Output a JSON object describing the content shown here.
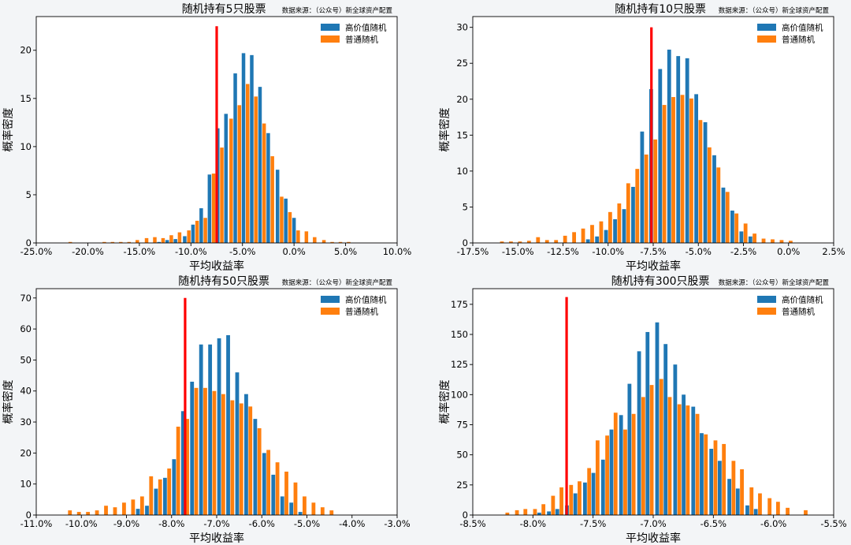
{
  "colors": {
    "high": "#1f77b4",
    "normal": "#ff7f0e",
    "marker": "#ff0000"
  },
  "chart_data": [
    {
      "type": "bar",
      "title": "随机持有5只股票",
      "source": "数据来源：（公众号）新全球资产配置",
      "xlabel": "平均收益率",
      "ylabel": "概率密度",
      "xlim": [
        -25,
        10
      ],
      "ylim": [
        0,
        23.5
      ],
      "xticks": [
        -25,
        -20,
        -15,
        -10,
        -5,
        0,
        5,
        10
      ],
      "xtick_labels": [
        "-25.0%",
        "-20.0%",
        "-15.0%",
        "-10.0%",
        "-5.0%",
        "0.0%",
        "5.0%",
        "10.0%"
      ],
      "yticks": [
        0,
        5,
        10,
        15,
        20
      ],
      "ytick_labels": [
        "0",
        "5",
        "10",
        "15",
        "20"
      ],
      "bin_width": 0.82,
      "legend": "top-right",
      "vline": {
        "x": -7.5,
        "y_top": 22.5
      },
      "series": [
        {
          "name": "高价值随机",
          "x": [
            -13.1,
            -12.3,
            -11.5,
            -10.6,
            -9.8,
            -9.0,
            -8.2,
            -7.4,
            -6.6,
            -5.7,
            -4.9,
            -4.1,
            -3.3,
            -2.5,
            -1.6,
            -0.8,
            0.0
          ],
          "values": [
            0.1,
            0.3,
            0.4,
            0.7,
            1.9,
            3.6,
            7.1,
            11.9,
            13.4,
            17.6,
            19.7,
            19.5,
            16.2,
            11.4,
            7.6,
            4.6,
            2.6
          ]
        },
        {
          "name": "普通随机",
          "x": [
            -21.7,
            -18.4,
            -17.6,
            -16.8,
            -16.0,
            -15.2,
            -14.3,
            -13.5,
            -12.7,
            -11.9,
            -11.1,
            -10.2,
            -9.4,
            -8.6,
            -7.8,
            -7.0,
            -6.1,
            -5.3,
            -4.5,
            -3.7,
            -2.9,
            -2.1,
            -1.2,
            -0.4,
            0.4,
            1.2,
            2.0,
            2.9,
            3.7,
            4.5,
            5.3
          ],
          "values": [
            0.1,
            0.1,
            0.1,
            0.1,
            0.1,
            0.3,
            0.5,
            0.6,
            0.5,
            0.8,
            1.1,
            1.3,
            2.3,
            2.6,
            7.2,
            9.9,
            12.9,
            14.3,
            16.5,
            15.2,
            12.4,
            9.0,
            4.8,
            3.2,
            1.3,
            1.2,
            0.6,
            0.3,
            0.1,
            0.1,
            0.1
          ]
        }
      ]
    },
    {
      "type": "bar",
      "title": "随机持有10只股票",
      "source": "数据来源：（公众号）新全球资产配置",
      "xlabel": "平均收益率",
      "ylabel": "概率密度",
      "xlim": [
        -17.5,
        2.5
      ],
      "ylim": [
        0,
        31.5
      ],
      "xticks": [
        -17.5,
        -15,
        -12.5,
        -10,
        -7.5,
        -5,
        -2.5,
        0,
        2.5
      ],
      "xtick_labels": [
        "-17.5%",
        "-15.0%",
        "-12.5%",
        "-10.0%",
        "-7.5%",
        "-5.0%",
        "-2.5%",
        "0.0%",
        "2.5%"
      ],
      "yticks": [
        0,
        5,
        10,
        15,
        20,
        25,
        30
      ],
      "ytick_labels": [
        "0",
        "5",
        "10",
        "15",
        "20",
        "25",
        "30"
      ],
      "bin_width": 0.5,
      "legend": "top-right",
      "vline": {
        "x": -7.6,
        "y_top": 30
      },
      "series": [
        {
          "name": "高价值随机",
          "x": [
            -11.0,
            -10.5,
            -10.0,
            -9.5,
            -9.0,
            -8.5,
            -8.0,
            -7.5,
            -7.0,
            -6.5,
            -6.0,
            -5.5,
            -5.0,
            -4.5,
            -4.0,
            -3.5,
            -3.0,
            -2.5,
            -2.0
          ],
          "values": [
            0.5,
            0.9,
            1.8,
            3.3,
            4.7,
            7.8,
            15.5,
            21.4,
            24.2,
            26.9,
            26.0,
            25.7,
            20.7,
            16.8,
            12.2,
            7.7,
            4.5,
            1.6,
            0.9
          ],
          "offset": -1
        },
        {
          "name": "普通随机",
          "x": [
            -16.0,
            -15.5,
            -15.0,
            -14.5,
            -14.0,
            -13.5,
            -13.0,
            -12.5,
            -12.0,
            -11.5,
            -11.0,
            -10.5,
            -10.0,
            -9.5,
            -9.0,
            -8.5,
            -8.0,
            -7.5,
            -7.0,
            -6.5,
            -6.0,
            -5.5,
            -5.0,
            -4.5,
            -4.0,
            -3.5,
            -3.0,
            -2.5,
            -2.0,
            -1.5,
            -1.0,
            -0.5,
            0.0
          ],
          "values": [
            0.2,
            0.2,
            0.2,
            0.3,
            0.8,
            0.4,
            0.4,
            1.0,
            1.5,
            2.0,
            2.5,
            3.0,
            4.3,
            5.5,
            8.3,
            10.3,
            12.3,
            14.4,
            19.2,
            20.3,
            20.6,
            20.1,
            17.1,
            13.3,
            10.5,
            7.1,
            4.1,
            2.7,
            1.3,
            0.6,
            0.5,
            0.4,
            0.3
          ],
          "offset": 1
        }
      ]
    },
    {
      "type": "bar",
      "title": "随机持有50只股票",
      "source": "数据来源：（公众号）新全球资产配置",
      "xlabel": "平均收益率",
      "ylabel": "概率密度",
      "xlim": [
        -11,
        -3
      ],
      "ylim": [
        0,
        73
      ],
      "xticks": [
        -11,
        -10,
        -9,
        -8,
        -7,
        -6,
        -5,
        -4,
        -3
      ],
      "xtick_labels": [
        "-11.0%",
        "-10.0%",
        "-9.0%",
        "-8.0%",
        "-7.0%",
        "-6.0%",
        "-5.0%",
        "-4.0%",
        "-3.0%"
      ],
      "yticks": [
        0,
        10,
        20,
        30,
        40,
        50,
        60,
        70
      ],
      "ytick_labels": [
        "0",
        "10",
        "20",
        "30",
        "40",
        "50",
        "60",
        "70"
      ],
      "bin_width": 0.2,
      "legend": "top-right",
      "vline": {
        "x": -7.7,
        "y_top": 70
      },
      "series": [
        {
          "name": "高价值随机",
          "x": [
            -8.7,
            -8.5,
            -8.3,
            -8.1,
            -7.9,
            -7.7,
            -7.5,
            -7.3,
            -7.1,
            -6.9,
            -6.7,
            -6.5,
            -6.3,
            -6.1,
            -5.9,
            -5.7,
            -5.5,
            -5.3,
            -5.1
          ],
          "values": [
            2.0,
            3.0,
            8.5,
            12.0,
            18.0,
            33.5,
            43.0,
            55.0,
            55.0,
            57.0,
            58.0,
            46.0,
            39.0,
            31.0,
            20.0,
            13.0,
            6.0,
            4.0,
            1.0
          ],
          "offset": -1
        },
        {
          "name": "普通随机",
          "x": [
            -10.3,
            -10.1,
            -9.9,
            -9.7,
            -9.5,
            -9.3,
            -9.1,
            -8.9,
            -8.7,
            -8.5,
            -8.3,
            -8.1,
            -7.9,
            -7.7,
            -7.5,
            -7.3,
            -7.1,
            -6.9,
            -6.7,
            -6.5,
            -6.3,
            -6.1,
            -5.9,
            -5.7,
            -5.5,
            -5.3,
            -5.1,
            -4.9,
            -4.7,
            -4.5
          ],
          "values": [
            1.5,
            1.0,
            1.0,
            1.5,
            3.0,
            2.5,
            4.0,
            5.0,
            6.0,
            12.5,
            11.5,
            15.0,
            28.5,
            31.0,
            41.0,
            41.0,
            40.0,
            39.0,
            37.0,
            36.0,
            35.0,
            28.0,
            21.0,
            17.0,
            14.0,
            10.5,
            6.0,
            4.0,
            2.5,
            1.5
          ],
          "offset": 1
        }
      ]
    },
    {
      "type": "bar",
      "title": "随机持有300只股票",
      "source": "数据来源：（公众号）新全球资产配置",
      "xlabel": "平均收益率",
      "ylabel": "概率密度",
      "xlim": [
        -8.5,
        -5.5
      ],
      "ylim": [
        0,
        188
      ],
      "xticks": [
        -8.5,
        -8.0,
        -7.5,
        -7.0,
        -6.5,
        -6.0,
        -5.5
      ],
      "xtick_labels": [
        "-8.5%",
        "-8.0%",
        "-7.5%",
        "-7.0%",
        "-6.5%",
        "-6.0%",
        "-5.5%"
      ],
      "yticks": [
        0,
        25,
        50,
        75,
        100,
        125,
        150,
        175
      ],
      "ytick_labels": [
        "0",
        "25",
        "50",
        "75",
        "100",
        "125",
        "150",
        "175"
      ],
      "bin_width": 0.075,
      "legend": "top-right",
      "vline": {
        "x": -7.72,
        "y_top": 181
      },
      "series": [
        {
          "name": "高价值随机",
          "x": [
            -7.93,
            -7.85,
            -7.78,
            -7.7,
            -7.63,
            -7.55,
            -7.48,
            -7.4,
            -7.33,
            -7.25,
            -7.18,
            -7.1,
            -7.03,
            -6.95,
            -6.88,
            -6.8,
            -6.73,
            -6.65,
            -6.58,
            -6.5,
            -6.43,
            -6.35,
            -6.28,
            -6.2,
            -6.13
          ],
          "values": [
            2,
            3,
            5,
            8,
            18,
            27,
            35,
            46,
            71,
            83,
            109,
            136,
            152,
            160,
            142,
            125,
            100,
            90,
            68,
            55,
            45,
            30,
            22,
            8,
            5
          ],
          "offset": -1
        },
        {
          "name": "普通随机",
          "x": [
            -8.23,
            -8.15,
            -8.08,
            -8.0,
            -7.93,
            -7.85,
            -7.78,
            -7.7,
            -7.63,
            -7.55,
            -7.48,
            -7.4,
            -7.33,
            -7.25,
            -7.18,
            -7.1,
            -7.03,
            -6.95,
            -6.88,
            -6.8,
            -6.73,
            -6.65,
            -6.58,
            -6.5,
            -6.43,
            -6.35,
            -6.28,
            -6.2,
            -6.13,
            -6.05,
            -5.98,
            -5.9,
            -5.75
          ],
          "values": [
            2,
            4,
            5,
            5,
            9,
            16,
            23,
            25,
            28,
            39,
            62,
            66,
            85,
            71,
            84,
            98,
            108,
            113,
            98,
            92,
            91,
            84,
            67,
            62,
            59,
            45,
            38,
            23,
            18,
            14,
            11,
            6,
            4
          ],
          "offset": 1
        }
      ]
    }
  ]
}
